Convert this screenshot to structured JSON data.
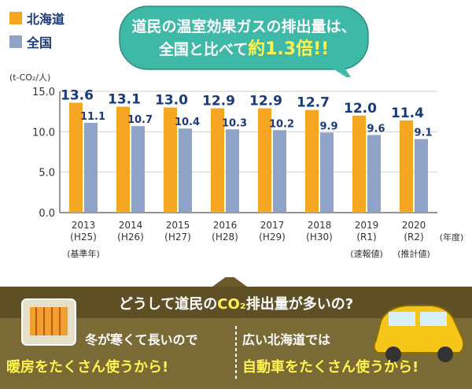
{
  "legend": {
    "hokkaido": {
      "label": "北海道",
      "color": "#f5a623"
    },
    "national": {
      "label": "全国",
      "color": "#8fa3c8"
    }
  },
  "headline": {
    "line1": "道民の温室効果ガスの排出量は、",
    "line2_prefix": "全国と比べて",
    "line2_emphasis": "約1.3倍!!"
  },
  "chart_data": {
    "type": "bar",
    "categories": [
      "2013\n(H25)",
      "2014\n(H26)",
      "2015\n(H27)",
      "2016\n(H28)",
      "2017\n(H29)",
      "2018\n(H30)",
      "2019\n(R1)",
      "2020\n(R2)"
    ],
    "sub_labels": [
      "(基準年)",
      "",
      "",
      "",
      "",
      "",
      "(速報値)",
      "(推計値)"
    ],
    "series": [
      {
        "name": "北海道",
        "values": [
          13.6,
          13.1,
          13.0,
          12.9,
          12.9,
          12.7,
          12.0,
          11.4
        ]
      },
      {
        "name": "全国",
        "values": [
          11.1,
          10.7,
          10.4,
          10.3,
          10.2,
          9.9,
          9.6,
          9.1
        ]
      }
    ],
    "ylabel": "(t-CO₂/人)",
    "xlabel": "(年度)",
    "ylim": [
      0,
      15
    ],
    "yticks": [
      "0.0",
      "5.0",
      "10.0",
      "15.0"
    ],
    "grid": true
  },
  "banner": {
    "question_prefix": "どうして道民の",
    "question_co2": "CO₂",
    "question_suffix": "排出量が多いの?",
    "left_line1": "冬が寒くて長いので",
    "left_line2": "暖房をたくさん使うから!",
    "right_line1": "広い北海道では",
    "right_line2": "自動車をたくさん使うから!"
  },
  "colors": {
    "hokkaido_bar": "#f5a623",
    "national_bar": "#8fa3c8",
    "bubble": "#3fb9a7",
    "banner_top": "#6b5a2a",
    "banner_bottom": "#7a6a35",
    "highlight": "#fff44f"
  }
}
